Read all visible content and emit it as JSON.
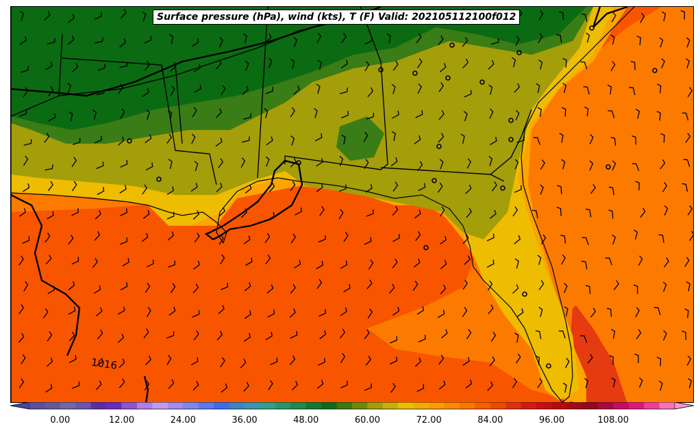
{
  "title": "Surface pressure (hPa), wind (kts), T (F) Valid: 202105112100f012",
  "isobar_label": "1016",
  "colorbar": {
    "tick_labels": [
      "0.00",
      "12.00",
      "24.00",
      "36.00",
      "48.00",
      "60.00",
      "72.00",
      "84.00",
      "96.00",
      "108.00"
    ],
    "tick_values": [
      0,
      12,
      24,
      36,
      48,
      60,
      72,
      84,
      96,
      108
    ],
    "range": [
      -6,
      120
    ],
    "colors": [
      "#4a44a8",
      "#5a4ea6",
      "#635a9e",
      "#6e68ac",
      "#6a55b0",
      "#5a2ea8",
      "#6a2bc2",
      "#8e55d6",
      "#b07ee6",
      "#c09cf0",
      "#a08cf4",
      "#7a88f2",
      "#5a7af2",
      "#3a6ef0",
      "#3a86c8",
      "#3a96b0",
      "#2fa08c",
      "#28966a",
      "#1e8a4e",
      "#0f7a35",
      "#0d6b1a",
      "#3a7a10",
      "#6e8a0a",
      "#a39e0a",
      "#c8b00a",
      "#f0be00",
      "#f5aa00",
      "#fd9b00",
      "#fd8a00",
      "#fc7600",
      "#f85f00",
      "#f04a00",
      "#e03010",
      "#d41a10",
      "#c80e10",
      "#b80a10",
      "#a40a14",
      "#94081c",
      "#a80a40",
      "#c80c64",
      "#e0167e",
      "#f03c9c",
      "#f872b8",
      "#fc96cc"
    ]
  },
  "map_colors": {
    "dark_green": "#0b6b12",
    "green": "#3a7c15",
    "olive": "#a39e0a",
    "yellow": "#eebc00",
    "orange": "#fca400",
    "dark_orange": "#fd7a00",
    "red_orange": "#f85500",
    "red": "#e63a10"
  }
}
